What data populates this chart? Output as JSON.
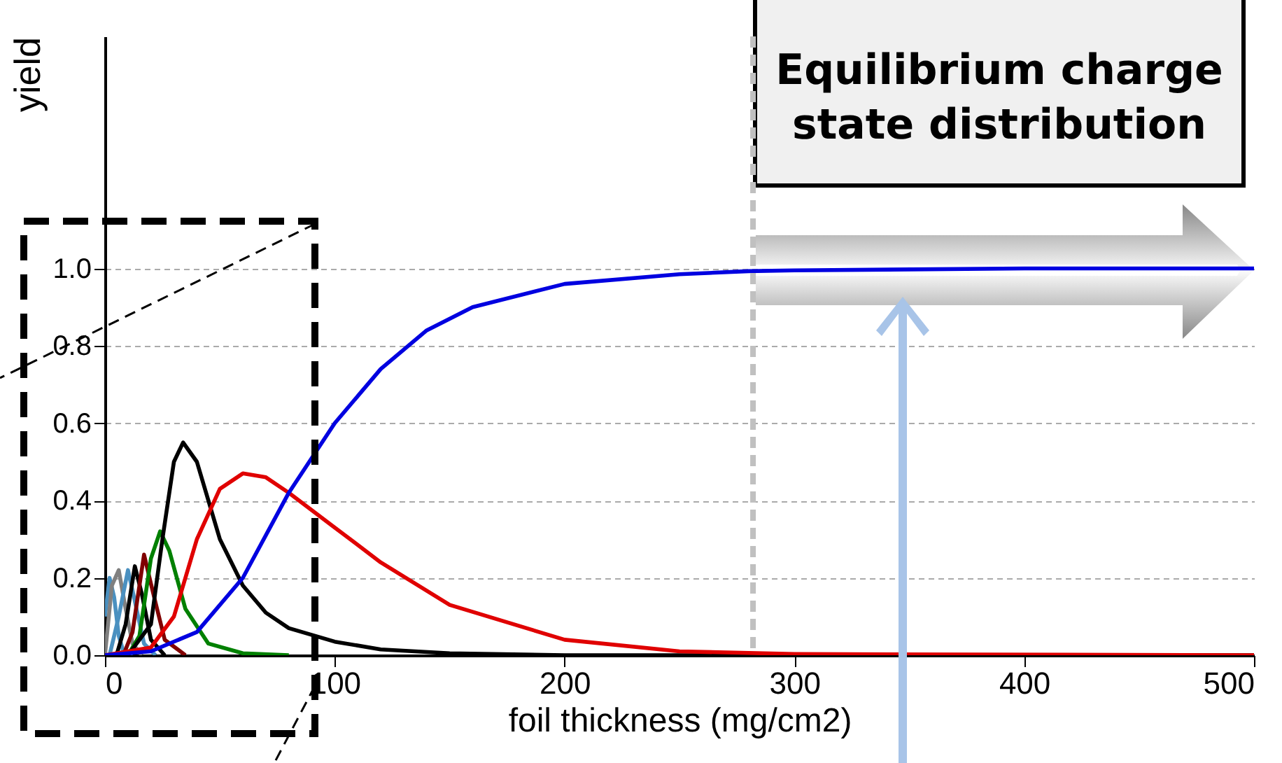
{
  "chart_data": {
    "type": "line",
    "xlabel": "foil thickness (mg/cm2)",
    "ylabel": "yield",
    "annotations": [
      "Equilibrium charge state distribution"
    ],
    "xlim": [
      0,
      500
    ],
    "xticks": [
      0,
      100,
      200,
      300,
      400,
      500
    ],
    "ylim": [
      0,
      1.6
    ],
    "yticks": [
      {
        "value": 0,
        "label": "0.0"
      },
      {
        "value": 0.2,
        "label": "0.2"
      },
      {
        "value": 0.4,
        "label": "0.4"
      },
      {
        "value": 0.6,
        "label": "0.6"
      },
      {
        "value": 0.8,
        "label": "0.8"
      },
      {
        "value": 1,
        "label": "1.0"
      }
    ],
    "grid": "y",
    "line_style": "solid",
    "legend": false,
    "ref_lines": [
      {
        "axis": "x",
        "value": 282,
        "label": null,
        "color": "#c0c0c0",
        "line_style": "dashed"
      }
    ],
    "series": [
      {
        "color": "#4a90c0",
        "x": [
          0,
          2,
          4,
          6,
          8,
          12
        ],
        "values": [
          0.1,
          0.2,
          0.15,
          0.05,
          0.01,
          0
        ]
      },
      {
        "color": "#808080",
        "x": [
          0,
          3,
          6,
          9,
          12,
          16
        ],
        "values": [
          0,
          0.18,
          0.22,
          0.12,
          0.03,
          0
        ]
      },
      {
        "color": "#4a90c0",
        "x": [
          2,
          6,
          10,
          13,
          17,
          22
        ],
        "values": [
          0,
          0.1,
          0.22,
          0.14,
          0.03,
          0
        ]
      },
      {
        "color": "#000000",
        "x": [
          5,
          9,
          13,
          16,
          20,
          26
        ],
        "values": [
          0,
          0.08,
          0.23,
          0.16,
          0.04,
          0
        ]
      },
      {
        "color": "#800000",
        "x": [
          8,
          12,
          17,
          21,
          26,
          35
        ],
        "values": [
          0,
          0.06,
          0.26,
          0.16,
          0.04,
          0
        ]
      },
      {
        "color": "#008000",
        "x": [
          10,
          15,
          20,
          24,
          28,
          35,
          45,
          60,
          80
        ],
        "values": [
          0,
          0.05,
          0.25,
          0.32,
          0.27,
          0.12,
          0.03,
          0.005,
          0
        ]
      },
      {
        "color": "#000000",
        "x": [
          10,
          20,
          25,
          30,
          34,
          40,
          50,
          60,
          70,
          80,
          100,
          120,
          150,
          200,
          500
        ],
        "values": [
          0,
          0.08,
          0.3,
          0.5,
          0.55,
          0.5,
          0.3,
          0.18,
          0.11,
          0.07,
          0.035,
          0.015,
          0.005,
          0,
          0
        ]
      },
      {
        "color": "#e00000",
        "x": [
          0,
          20,
          30,
          40,
          50,
          60,
          70,
          80,
          100,
          120,
          150,
          200,
          250,
          300,
          500
        ],
        "values": [
          0,
          0.02,
          0.1,
          0.3,
          0.43,
          0.47,
          0.46,
          0.42,
          0.33,
          0.24,
          0.13,
          0.04,
          0.01,
          0.003,
          0
        ]
      },
      {
        "color": "#0000e0",
        "x": [
          0,
          20,
          40,
          60,
          80,
          100,
          120,
          140,
          160,
          200,
          250,
          280,
          300,
          400,
          500
        ],
        "values": [
          0,
          0.01,
          0.06,
          0.2,
          0.42,
          0.6,
          0.74,
          0.84,
          0.9,
          0.96,
          0.985,
          0.993,
          0.995,
          1,
          1
        ]
      }
    ]
  }
}
